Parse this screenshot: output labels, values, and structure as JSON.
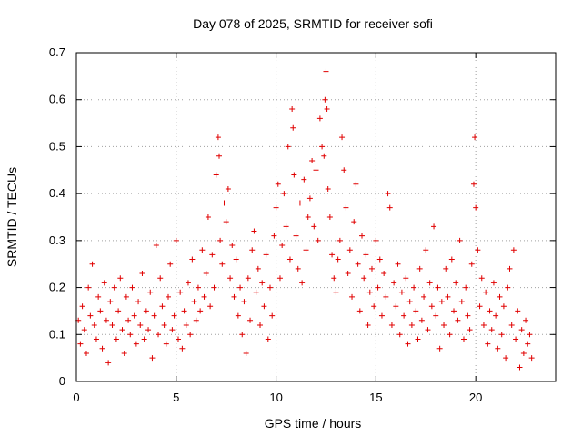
{
  "chart_data": {
    "type": "scatter",
    "title": "Day 078 of 2025, SRMTID for receiver sofi",
    "xlabel": "GPS time / hours",
    "ylabel": "SRMTID / TECUs",
    "xlim": [
      0,
      24
    ],
    "ylim": [
      0,
      0.7
    ],
    "x_ticks": [
      0,
      5,
      10,
      15,
      20
    ],
    "x_tick_labels": [
      "0",
      "5",
      "10",
      "15",
      "20"
    ],
    "y_ticks": [
      0,
      0.1,
      0.2,
      0.3,
      0.4,
      0.5,
      0.6,
      0.7
    ],
    "y_tick_labels": [
      "0",
      "0.1",
      "0.2",
      "0.3",
      "0.4",
      "0.5",
      "0.6",
      "0.7"
    ],
    "grid": true,
    "marker": "+",
    "marker_color": "#e00000",
    "series": [
      {
        "name": "SRMTID",
        "points": [
          [
            0.1,
            0.13
          ],
          [
            0.2,
            0.08
          ],
          [
            0.3,
            0.16
          ],
          [
            0.4,
            0.11
          ],
          [
            0.5,
            0.06
          ],
          [
            0.6,
            0.2
          ],
          [
            0.7,
            0.14
          ],
          [
            0.8,
            0.25
          ],
          [
            0.9,
            0.12
          ],
          [
            1.0,
            0.09
          ],
          [
            1.1,
            0.18
          ],
          [
            1.2,
            0.15
          ],
          [
            1.3,
            0.07
          ],
          [
            1.4,
            0.21
          ],
          [
            1.5,
            0.13
          ],
          [
            1.6,
            0.04
          ],
          [
            1.7,
            0.17
          ],
          [
            1.8,
            0.12
          ],
          [
            1.9,
            0.2
          ],
          [
            2.0,
            0.09
          ],
          [
            2.1,
            0.15
          ],
          [
            2.2,
            0.22
          ],
          [
            2.3,
            0.11
          ],
          [
            2.4,
            0.06
          ],
          [
            2.5,
            0.18
          ],
          [
            2.6,
            0.13
          ],
          [
            2.7,
            0.1
          ],
          [
            2.8,
            0.2
          ],
          [
            2.9,
            0.14
          ],
          [
            3.0,
            0.08
          ],
          [
            3.1,
            0.17
          ],
          [
            3.2,
            0.12
          ],
          [
            3.3,
            0.23
          ],
          [
            3.4,
            0.09
          ],
          [
            3.5,
            0.15
          ],
          [
            3.6,
            0.11
          ],
          [
            3.7,
            0.19
          ],
          [
            3.8,
            0.05
          ],
          [
            3.9,
            0.14
          ],
          [
            4.0,
            0.29
          ],
          [
            4.1,
            0.1
          ],
          [
            4.2,
            0.22
          ],
          [
            4.3,
            0.16
          ],
          [
            4.4,
            0.12
          ],
          [
            4.5,
            0.08
          ],
          [
            4.6,
            0.18
          ],
          [
            4.7,
            0.25
          ],
          [
            4.8,
            0.11
          ],
          [
            4.9,
            0.14
          ],
          [
            5.0,
            0.3
          ],
          [
            5.1,
            0.09
          ],
          [
            5.2,
            0.19
          ],
          [
            5.3,
            0.07
          ],
          [
            5.4,
            0.15
          ],
          [
            5.5,
            0.12
          ],
          [
            5.6,
            0.21
          ],
          [
            5.7,
            0.1
          ],
          [
            5.8,
            0.26
          ],
          [
            5.9,
            0.17
          ],
          [
            6.0,
            0.13
          ],
          [
            6.1,
            0.2
          ],
          [
            6.2,
            0.15
          ],
          [
            6.3,
            0.28
          ],
          [
            6.4,
            0.18
          ],
          [
            6.5,
            0.23
          ],
          [
            6.6,
            0.35
          ],
          [
            6.7,
            0.16
          ],
          [
            6.8,
            0.27
          ],
          [
            6.9,
            0.2
          ],
          [
            7.0,
            0.44
          ],
          [
            7.1,
            0.52
          ],
          [
            7.15,
            0.48
          ],
          [
            7.2,
            0.3
          ],
          [
            7.3,
            0.25
          ],
          [
            7.4,
            0.38
          ],
          [
            7.5,
            0.34
          ],
          [
            7.6,
            0.41
          ],
          [
            7.7,
            0.22
          ],
          [
            7.8,
            0.29
          ],
          [
            7.9,
            0.18
          ],
          [
            8.0,
            0.26
          ],
          [
            8.1,
            0.14
          ],
          [
            8.2,
            0.2
          ],
          [
            8.3,
            0.1
          ],
          [
            8.4,
            0.17
          ],
          [
            8.5,
            0.06
          ],
          [
            8.6,
            0.22
          ],
          [
            8.7,
            0.13
          ],
          [
            8.8,
            0.28
          ],
          [
            8.9,
            0.32
          ],
          [
            9.0,
            0.19
          ],
          [
            9.1,
            0.24
          ],
          [
            9.2,
            0.12
          ],
          [
            9.3,
            0.21
          ],
          [
            9.4,
            0.16
          ],
          [
            9.5,
            0.27
          ],
          [
            9.6,
            0.09
          ],
          [
            9.7,
            0.2
          ],
          [
            9.8,
            0.14
          ],
          [
            9.9,
            0.31
          ],
          [
            10.0,
            0.37
          ],
          [
            10.1,
            0.42
          ],
          [
            10.2,
            0.22
          ],
          [
            10.3,
            0.29
          ],
          [
            10.4,
            0.4
          ],
          [
            10.5,
            0.33
          ],
          [
            10.6,
            0.5
          ],
          [
            10.7,
            0.26
          ],
          [
            10.8,
            0.58
          ],
          [
            10.85,
            0.54
          ],
          [
            10.9,
            0.44
          ],
          [
            11.0,
            0.31
          ],
          [
            11.1,
            0.24
          ],
          [
            11.2,
            0.38
          ],
          [
            11.3,
            0.21
          ],
          [
            11.4,
            0.43
          ],
          [
            11.5,
            0.28
          ],
          [
            11.6,
            0.35
          ],
          [
            11.7,
            0.39
          ],
          [
            11.8,
            0.47
          ],
          [
            11.9,
            0.33
          ],
          [
            12.0,
            0.45
          ],
          [
            12.1,
            0.3
          ],
          [
            12.2,
            0.56
          ],
          [
            12.3,
            0.5
          ],
          [
            12.4,
            0.48
          ],
          [
            12.45,
            0.6
          ],
          [
            12.5,
            0.66
          ],
          [
            12.55,
            0.58
          ],
          [
            12.6,
            0.41
          ],
          [
            12.7,
            0.35
          ],
          [
            12.8,
            0.27
          ],
          [
            12.9,
            0.22
          ],
          [
            13.0,
            0.19
          ],
          [
            13.1,
            0.26
          ],
          [
            13.2,
            0.3
          ],
          [
            13.3,
            0.52
          ],
          [
            13.4,
            0.45
          ],
          [
            13.5,
            0.37
          ],
          [
            13.6,
            0.23
          ],
          [
            13.7,
            0.28
          ],
          [
            13.8,
            0.18
          ],
          [
            13.9,
            0.34
          ],
          [
            14.0,
            0.42
          ],
          [
            14.1,
            0.25
          ],
          [
            14.2,
            0.15
          ],
          [
            14.3,
            0.31
          ],
          [
            14.4,
            0.22
          ],
          [
            14.5,
            0.27
          ],
          [
            14.6,
            0.12
          ],
          [
            14.7,
            0.19
          ],
          [
            14.8,
            0.24
          ],
          [
            14.9,
            0.16
          ],
          [
            15.0,
            0.3
          ],
          [
            15.1,
            0.2
          ],
          [
            15.2,
            0.26
          ],
          [
            15.3,
            0.14
          ],
          [
            15.4,
            0.23
          ],
          [
            15.5,
            0.18
          ],
          [
            15.6,
            0.4
          ],
          [
            15.7,
            0.37
          ],
          [
            15.8,
            0.12
          ],
          [
            15.9,
            0.21
          ],
          [
            16.0,
            0.16
          ],
          [
            16.1,
            0.25
          ],
          [
            16.2,
            0.1
          ],
          [
            16.3,
            0.19
          ],
          [
            16.4,
            0.14
          ],
          [
            16.5,
            0.22
          ],
          [
            16.6,
            0.08
          ],
          [
            16.7,
            0.17
          ],
          [
            16.8,
            0.12
          ],
          [
            16.9,
            0.2
          ],
          [
            17.0,
            0.15
          ],
          [
            17.1,
            0.09
          ],
          [
            17.2,
            0.24
          ],
          [
            17.3,
            0.13
          ],
          [
            17.4,
            0.18
          ],
          [
            17.5,
            0.28
          ],
          [
            17.6,
            0.11
          ],
          [
            17.7,
            0.21
          ],
          [
            17.8,
            0.16
          ],
          [
            17.9,
            0.33
          ],
          [
            18.0,
            0.14
          ],
          [
            18.1,
            0.2
          ],
          [
            18.2,
            0.07
          ],
          [
            18.3,
            0.17
          ],
          [
            18.4,
            0.12
          ],
          [
            18.5,
            0.24
          ],
          [
            18.6,
            0.18
          ],
          [
            18.7,
            0.1
          ],
          [
            18.8,
            0.26
          ],
          [
            18.9,
            0.15
          ],
          [
            19.0,
            0.21
          ],
          [
            19.1,
            0.13
          ],
          [
            19.2,
            0.3
          ],
          [
            19.3,
            0.17
          ],
          [
            19.4,
            0.09
          ],
          [
            19.5,
            0.2
          ],
          [
            19.6,
            0.14
          ],
          [
            19.7,
            0.11
          ],
          [
            19.8,
            0.25
          ],
          [
            19.9,
            0.42
          ],
          [
            19.95,
            0.52
          ],
          [
            20.0,
            0.37
          ],
          [
            20.1,
            0.28
          ],
          [
            20.2,
            0.16
          ],
          [
            20.3,
            0.22
          ],
          [
            20.4,
            0.12
          ],
          [
            20.5,
            0.19
          ],
          [
            20.6,
            0.08
          ],
          [
            20.7,
            0.15
          ],
          [
            20.8,
            0.11
          ],
          [
            20.9,
            0.21
          ],
          [
            21.0,
            0.14
          ],
          [
            21.1,
            0.07
          ],
          [
            21.2,
            0.18
          ],
          [
            21.3,
            0.1
          ],
          [
            21.4,
            0.16
          ],
          [
            21.5,
            0.05
          ],
          [
            21.6,
            0.2
          ],
          [
            21.7,
            0.24
          ],
          [
            21.8,
            0.12
          ],
          [
            21.9,
            0.28
          ],
          [
            22.0,
            0.09
          ],
          [
            22.1,
            0.15
          ],
          [
            22.2,
            0.03
          ],
          [
            22.3,
            0.11
          ],
          [
            22.4,
            0.06
          ],
          [
            22.5,
            0.13
          ],
          [
            22.6,
            0.08
          ],
          [
            22.7,
            0.1
          ],
          [
            22.8,
            0.05
          ]
        ]
      }
    ]
  }
}
